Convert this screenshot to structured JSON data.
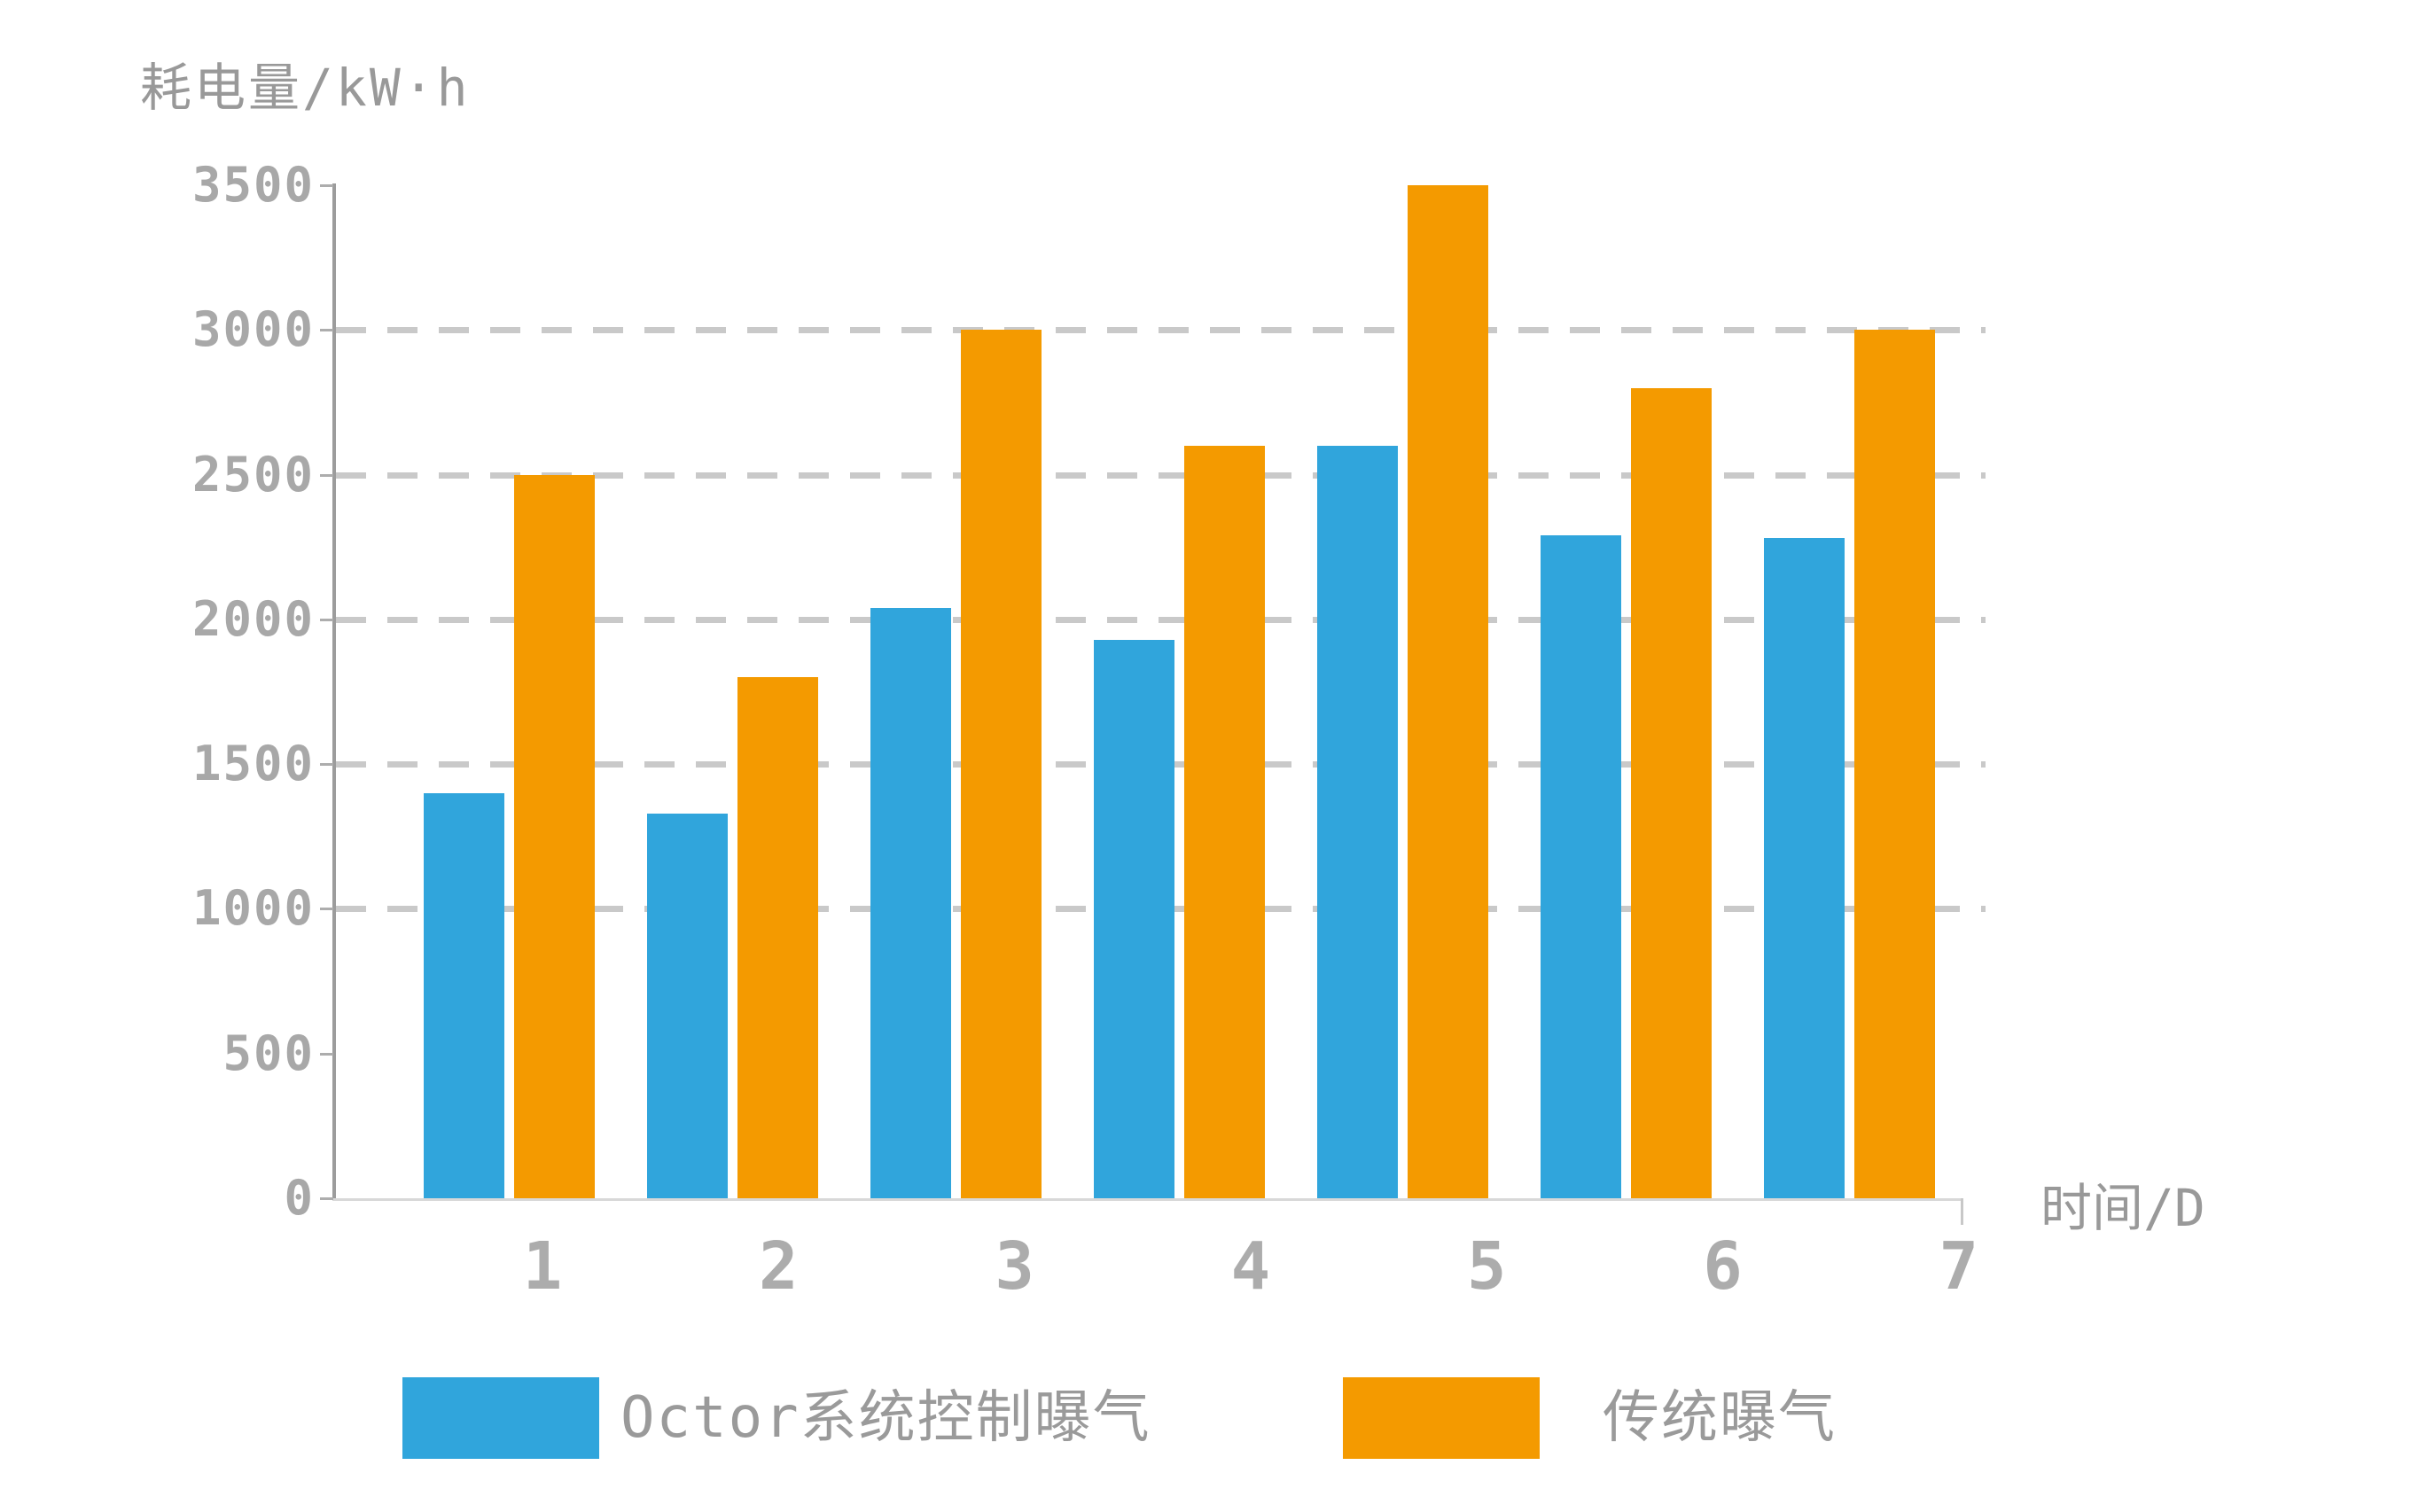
{
  "y_axis_title": "耗电量/kW·h",
  "x_axis_title": "时间/D",
  "legend": {
    "items": [
      {
        "label": "Octor系统控制曝气",
        "color": "#30A5DC"
      },
      {
        "label": "传统曝气",
        "color": "#F49A00"
      }
    ]
  },
  "chart_data": {
    "type": "bar",
    "categories": [
      "1",
      "2",
      "3",
      "4",
      "5",
      "6",
      "7"
    ],
    "series": [
      {
        "name": "Octor系统控制曝气",
        "color": "#30A5DC",
        "values": [
          1400,
          1330,
          2040,
          1930,
          2600,
          2290,
          2280
        ]
      },
      {
        "name": "传统曝气",
        "color": "#F49A00",
        "values": [
          2500,
          1800,
          3000,
          2600,
          3500,
          2800,
          3000
        ]
      }
    ],
    "xlabel": "时间/D",
    "ylabel": "耗电量/kW·h",
    "ylim": [
      0,
      3500
    ],
    "ytick_step": 500,
    "y_tick_labels": [
      "0",
      "500",
      "1000",
      "1500",
      "2000",
      "2500",
      "3000",
      "3500"
    ],
    "gridlines_at": [
      1000,
      1500,
      2000,
      2500,
      3000
    ],
    "grid_style": "dashed",
    "legend_position": "bottom",
    "axis_colors": {
      "axis_line": "#9C9C9C",
      "baseline": "#D8D8D8",
      "grid": "#C9C9C9",
      "tick_label": "#A8A8A8",
      "title_text": "#999999"
    }
  }
}
